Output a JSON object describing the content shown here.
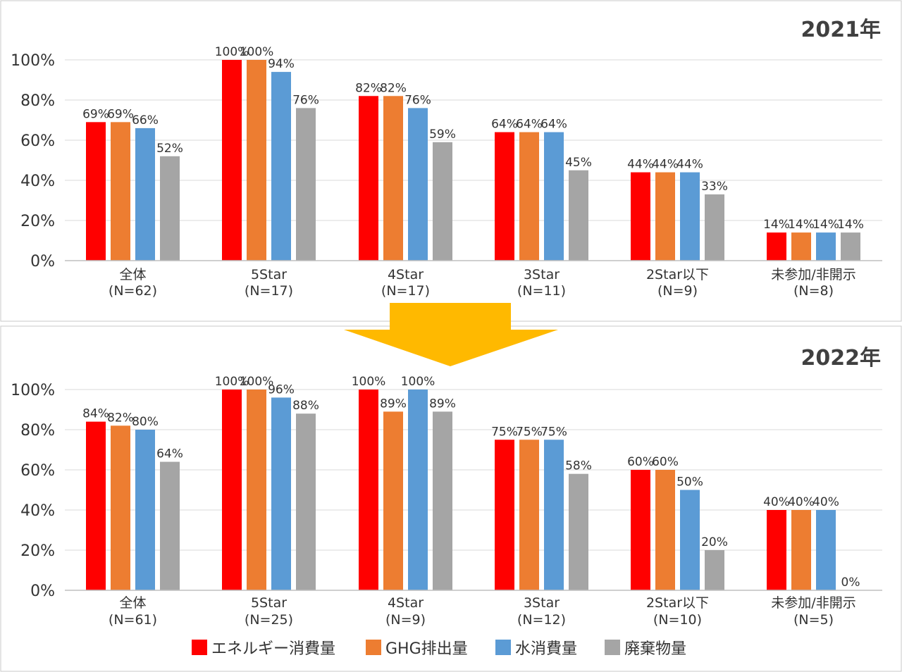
{
  "colors": {
    "series": [
      "#ff0000",
      "#ed7d31",
      "#5b9bd5",
      "#a5a5a5"
    ],
    "arrow": "#ffb900",
    "grid": "#d9d9d9",
    "panel_border": "#c8c8c8"
  },
  "chart_data": [
    {
      "type": "bar",
      "title": "2021年",
      "categories": [
        "全体\n(N=62)",
        "5Star\n(N=17)",
        "4Star\n(N=17)",
        "3Star\n(N=11)",
        "2Star以下\n(N=9)",
        "未参加/非開示\n(N=8)"
      ],
      "series": [
        {
          "name": "エネルギー消費量",
          "values": [
            69,
            100,
            82,
            64,
            44,
            14
          ]
        },
        {
          "name": "GHG排出量",
          "values": [
            69,
            100,
            82,
            64,
            44,
            14
          ]
        },
        {
          "name": "水消費量",
          "values": [
            66,
            94,
            76,
            64,
            44,
            14
          ]
        },
        {
          "name": "廃棄物量",
          "values": [
            52,
            76,
            59,
            45,
            33,
            14
          ]
        }
      ],
      "yticks": [
        "0%",
        "20%",
        "40%",
        "60%",
        "80%",
        "100%"
      ],
      "ylim": [
        0,
        100
      ],
      "value_suffix": "%"
    },
    {
      "type": "bar",
      "title": "2022年",
      "categories": [
        "全体\n(N=61)",
        "5Star\n(N=25)",
        "4Star\n(N=9)",
        "3Star\n(N=12)",
        "2Star以下\n(N=10)",
        "未参加/非開示\n(N=5)"
      ],
      "series": [
        {
          "name": "エネルギー消費量",
          "values": [
            84,
            100,
            100,
            75,
            60,
            40
          ]
        },
        {
          "name": "GHG排出量",
          "values": [
            82,
            100,
            89,
            75,
            60,
            40
          ]
        },
        {
          "name": "水消費量",
          "values": [
            80,
            96,
            100,
            75,
            50,
            40
          ]
        },
        {
          "name": "廃棄物量",
          "values": [
            64,
            88,
            89,
            58,
            20,
            0
          ]
        }
      ],
      "yticks": [
        "0%",
        "20%",
        "40%",
        "60%",
        "80%",
        "100%"
      ],
      "ylim": [
        0,
        100
      ],
      "value_suffix": "%"
    }
  ],
  "legend": [
    "エネルギー消費量",
    "GHG排出量",
    "水消費量",
    "廃棄物量"
  ]
}
